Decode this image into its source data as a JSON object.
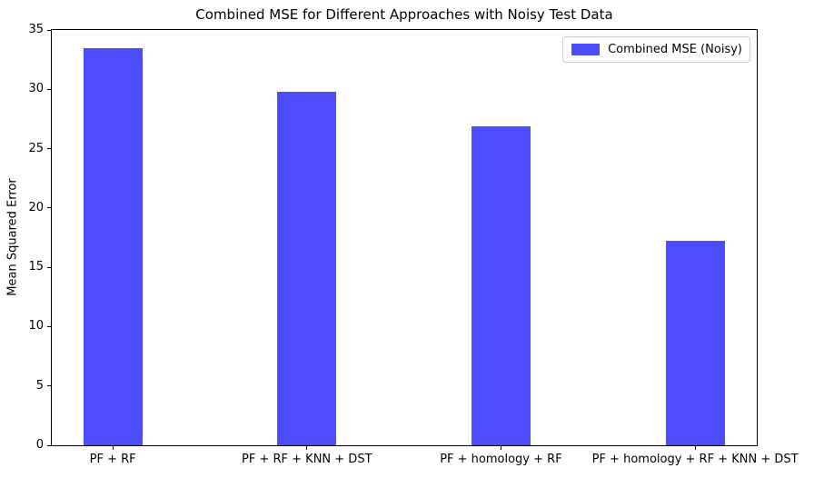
{
  "chart_data": {
    "type": "bar",
    "title": "Combined MSE for Different Approaches with Noisy Test Data",
    "xlabel": "",
    "ylabel": "Mean Squared Error",
    "categories": [
      "PF + RF",
      "PF + RF + KNN + DST",
      "PF + homology + RF",
      "PF + homology + RF + KNN + DST"
    ],
    "series": [
      {
        "name": "Combined MSE (Noisy)",
        "values": [
          33.5,
          29.8,
          26.9,
          17.2
        ]
      }
    ],
    "ylim": [
      0,
      35
    ],
    "yticks": [
      0,
      5,
      10,
      15,
      20,
      25,
      30,
      35
    ],
    "bar_color": "#4d4dff",
    "axis_color": "#000000",
    "legend_position": "upper right",
    "legend_border_color": "#cccccc",
    "grid": false,
    "background": "#ffffff"
  }
}
